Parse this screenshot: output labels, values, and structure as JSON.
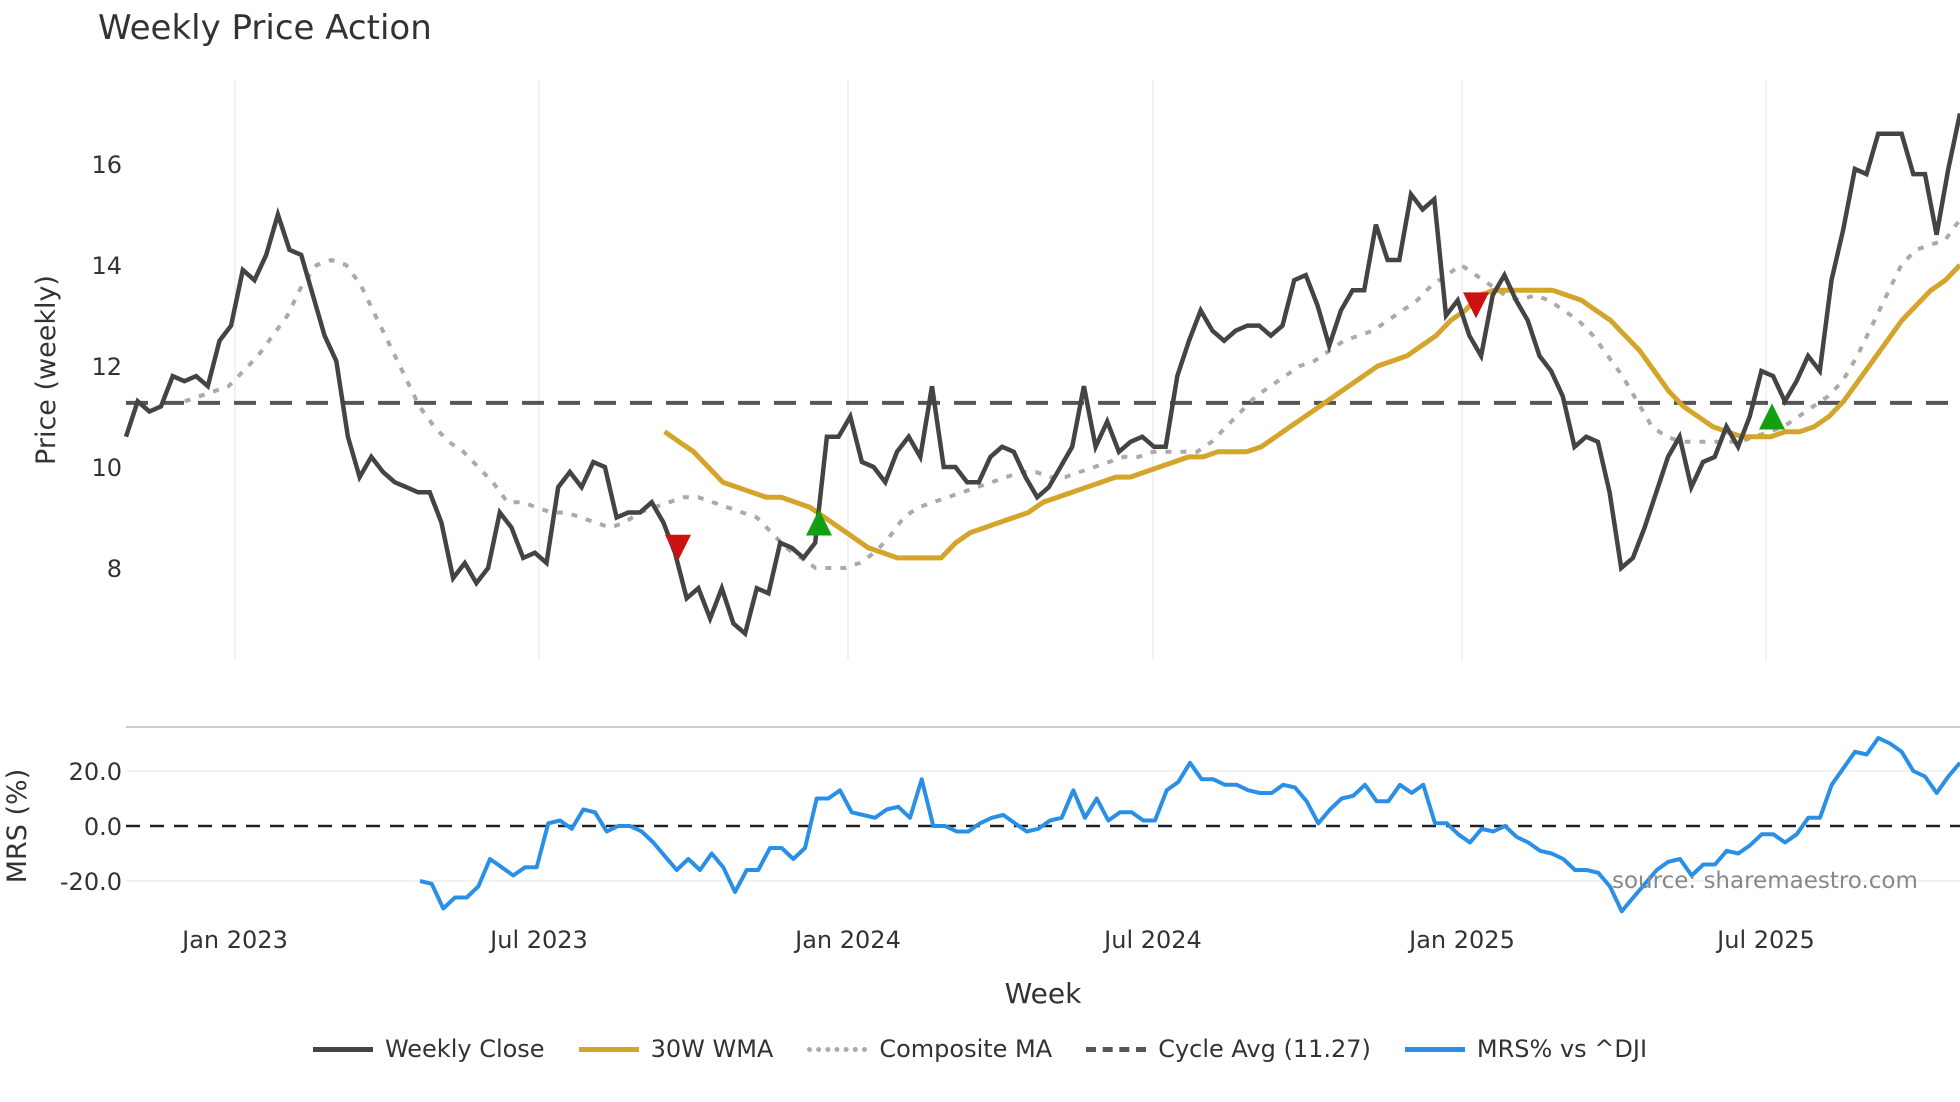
{
  "title": "Weekly Price Action",
  "source_note": "source: sharemaestro.com",
  "colors": {
    "weekly_close": "#444444",
    "wma30": "#D4A52A",
    "composite_ma": "#AAAAAA",
    "cycle_avg": "#555555",
    "mrs": "#2A8FE6",
    "buy_marker": "#12A012",
    "sell_marker": "#CC1111",
    "grid": "#ECEFF2"
  },
  "legend": {
    "items": [
      {
        "label": "Weekly Close",
        "style": "solid",
        "color": "#444444"
      },
      {
        "label": "30W WMA",
        "style": "solid",
        "color": "#D4A52A"
      },
      {
        "label": "Composite MA",
        "style": "dotted",
        "color": "#AAAAAA"
      },
      {
        "label": "Cycle Avg (11.27)",
        "style": "dashed",
        "color": "#555555"
      },
      {
        "label": "MRS% vs ^DJI",
        "style": "solid",
        "color": "#2A8FE6"
      }
    ]
  },
  "chart_data": [
    {
      "type": "line",
      "title": "Weekly Price Action",
      "xlabel": "Week",
      "ylabel": "Price (weekly)",
      "x_ticks": [
        "Jan 2023",
        "Jul 2023",
        "Jan 2024",
        "Jul 2024",
        "Jan 2025",
        "Jul 2025"
      ],
      "y_ticks": [
        8,
        10,
        12,
        14,
        16
      ],
      "ylim": [
        6.1,
        17.6
      ],
      "grid": "vertical",
      "legend_position": "bottom",
      "reference_lines": [
        {
          "label": "Cycle Avg",
          "value": 11.27,
          "style": "dashed"
        }
      ],
      "markers": [
        {
          "type": "sell",
          "shape": "triangle-down",
          "x_approx": "Oct 2023",
          "y": 8.4
        },
        {
          "type": "buy",
          "shape": "triangle-up",
          "x_approx": "Dec 2023",
          "y": 8.9
        },
        {
          "type": "sell",
          "shape": "triangle-down",
          "x_approx": "Jan 2025",
          "y": 13.2
        },
        {
          "type": "buy",
          "shape": "triangle-up",
          "x_approx": "Jul 2025",
          "y": 11.0
        }
      ],
      "series": [
        {
          "name": "Weekly Close",
          "values": [
            10.6,
            11.3,
            11.1,
            11.2,
            11.8,
            11.7,
            11.8,
            11.6,
            12.5,
            12.8,
            13.9,
            13.7,
            14.2,
            15.0,
            14.3,
            14.2,
            13.4,
            12.6,
            12.1,
            10.6,
            9.8,
            10.2,
            9.9,
            9.7,
            9.6,
            9.5,
            9.5,
            8.9,
            7.8,
            8.1,
            7.7,
            8.0,
            9.1,
            8.8,
            8.2,
            8.3,
            8.1,
            9.6,
            9.9,
            9.6,
            10.1,
            10.0,
            9.0,
            9.1,
            9.1,
            9.3,
            8.9,
            8.3,
            7.4,
            7.6,
            7.0,
            7.6,
            6.9,
            6.7,
            7.6,
            7.5,
            8.5,
            8.4,
            8.2,
            8.5,
            10.6,
            10.6,
            11.0,
            10.1,
            10.0,
            9.7,
            10.3,
            10.6,
            10.2,
            11.6,
            10.0,
            10.0,
            9.7,
            9.7,
            10.2,
            10.4,
            10.3,
            9.8,
            9.4,
            9.6,
            10.0,
            10.4,
            11.6,
            10.4,
            10.9,
            10.3,
            10.5,
            10.6,
            10.4,
            10.4,
            11.8,
            12.5,
            13.1,
            12.7,
            12.5,
            12.7,
            12.8,
            12.8,
            12.6,
            12.8,
            13.7,
            13.8,
            13.2,
            12.4,
            13.1,
            13.5,
            13.5,
            14.8,
            14.1,
            14.1,
            15.4,
            15.1,
            15.3,
            13.0,
            13.3,
            12.6,
            12.2,
            13.4,
            13.8,
            13.3,
            12.9,
            12.2,
            11.9,
            11.4,
            10.4,
            10.6,
            10.5,
            9.5,
            8.0,
            8.2,
            8.8,
            9.5,
            10.2,
            10.6,
            9.6,
            10.1,
            10.2,
            10.8,
            10.4,
            11.0,
            11.9,
            11.8,
            11.3,
            11.7,
            12.2,
            11.9,
            13.7,
            14.7,
            15.9,
            15.8,
            16.6,
            16.6,
            16.6,
            15.8,
            15.8,
            14.6,
            15.9,
            17.0
          ]
        },
        {
          "name": "30W WMA",
          "values": [
            null,
            null,
            null,
            null,
            null,
            null,
            null,
            null,
            null,
            null,
            null,
            null,
            null,
            null,
            null,
            null,
            null,
            null,
            null,
            null,
            null,
            null,
            null,
            null,
            null,
            null,
            null,
            null,
            null,
            null,
            null,
            null,
            null,
            null,
            null,
            null,
            null,
            10.7,
            10.5,
            10.3,
            10.0,
            9.7,
            9.6,
            9.5,
            9.4,
            9.4,
            9.3,
            9.2,
            9.0,
            8.8,
            8.6,
            8.4,
            8.3,
            8.2,
            8.2,
            8.2,
            8.2,
            8.5,
            8.7,
            8.8,
            8.9,
            9.0,
            9.1,
            9.3,
            9.4,
            9.5,
            9.6,
            9.7,
            9.8,
            9.8,
            9.9,
            10.0,
            10.1,
            10.2,
            10.2,
            10.3,
            10.3,
            10.3,
            10.4,
            10.6,
            10.8,
            11.0,
            11.2,
            11.4,
            11.6,
            11.8,
            12.0,
            12.1,
            12.2,
            12.4,
            12.6,
            12.9,
            13.1,
            13.4,
            13.5,
            13.5,
            13.5,
            13.5,
            13.5,
            13.4,
            13.3,
            13.1,
            12.9,
            12.6,
            12.3,
            11.9,
            11.5,
            11.2,
            11.0,
            10.8,
            10.7,
            10.6,
            10.6,
            10.6,
            10.7,
            10.7,
            10.8,
            11.0,
            11.3,
            11.7,
            12.1,
            12.5,
            12.9,
            13.2,
            13.5,
            13.7,
            14.0
          ]
        },
        {
          "name": "Composite MA",
          "values": [
            null,
            null,
            null,
            null,
            11.3,
            11.4,
            11.5,
            11.6,
            11.9,
            12.2,
            12.6,
            13.0,
            13.6,
            14.0,
            14.1,
            14.0,
            13.6,
            13.0,
            12.4,
            11.8,
            11.2,
            10.8,
            10.5,
            10.3,
            10.0,
            9.7,
            9.3,
            9.3,
            9.2,
            9.1,
            9.1,
            9.0,
            8.9,
            8.8,
            8.9,
            9.1,
            9.2,
            9.3,
            9.4,
            9.4,
            9.3,
            9.2,
            9.1,
            9.0,
            8.7,
            8.4,
            8.2,
            8.0,
            8.0,
            8.0,
            8.1,
            8.3,
            8.6,
            9.0,
            9.2,
            9.3,
            9.4,
            9.5,
            9.6,
            9.7,
            9.8,
            9.9,
            9.9,
            9.8,
            9.8,
            9.9,
            10.0,
            10.1,
            10.2,
            10.2,
            10.3,
            10.3,
            10.3,
            10.3,
            10.5,
            10.8,
            11.1,
            11.4,
            11.6,
            11.8,
            12.0,
            12.1,
            12.3,
            12.5,
            12.6,
            12.7,
            12.9,
            13.1,
            13.3,
            13.6,
            13.8,
            14.0,
            13.8,
            13.6,
            13.4,
            13.3,
            13.4,
            13.3,
            13.1,
            12.9,
            12.6,
            12.2,
            11.8,
            11.3,
            10.8,
            10.6,
            10.5,
            10.5,
            10.5,
            10.5,
            10.5,
            10.6,
            10.7,
            10.8,
            11.0,
            11.2,
            11.4,
            11.7,
            12.2,
            12.8,
            13.4,
            14.0,
            14.3,
            14.4,
            14.5,
            14.9
          ]
        },
        {
          "name": "Cycle Avg (11.27)",
          "values": "constant 11.27"
        }
      ]
    },
    {
      "type": "line",
      "xlabel": "Week",
      "ylabel": "MRS (%)",
      "x_ticks": [
        "Jan 2023",
        "Jul 2023",
        "Jan 2024",
        "Jul 2024",
        "Jan 2025",
        "Jul 2025"
      ],
      "y_ticks": [
        -20.0,
        0.0,
        20.0
      ],
      "ylim": [
        -33,
        36
      ],
      "reference_lines": [
        {
          "value": 0,
          "style": "dashed"
        }
      ],
      "series": [
        {
          "name": "MRS% vs ^DJI",
          "values": [
            -20,
            -21,
            -30,
            -26,
            -26,
            -22,
            -12,
            -15,
            -18,
            -15,
            -15,
            1,
            2,
            -1,
            6,
            5,
            -2,
            0,
            0,
            -2,
            -6,
            -11,
            -16,
            -12,
            -16,
            -10,
            -15,
            -24,
            -16,
            -16,
            -8,
            -8,
            -12,
            -8,
            10,
            10,
            13,
            5,
            4,
            3,
            6,
            7,
            3,
            17,
            0,
            0,
            -2,
            -2,
            1,
            3,
            4,
            1,
            -2,
            -1,
            2,
            3,
            13,
            3,
            10,
            2,
            5,
            5,
            2,
            2,
            13,
            16,
            23,
            17,
            17,
            15,
            15,
            13,
            12,
            12,
            15,
            14,
            9,
            1,
            6,
            10,
            11,
            15,
            9,
            9,
            15,
            12,
            15,
            1,
            1,
            -3,
            -6,
            -1,
            -2,
            0,
            -4,
            -6,
            -9,
            -10,
            -12,
            -16,
            -16,
            -17,
            -22,
            -31,
            -26,
            -21,
            -16,
            -13,
            -12,
            -18,
            -14,
            -14,
            -9,
            -10,
            -7,
            -3,
            -3,
            -6,
            -3,
            3,
            3,
            15,
            21,
            27,
            26,
            32,
            30,
            27,
            20,
            18,
            12,
            18,
            23
          ]
        }
      ]
    }
  ],
  "axes": {
    "price": {
      "ylabel": "Price (weekly)",
      "ticks": [
        "16",
        "14",
        "12",
        "10",
        "8"
      ]
    },
    "mrs": {
      "ylabel": "MRS (%)",
      "ticks": [
        "20.0",
        "0.0",
        "-20.0"
      ]
    },
    "x": {
      "label": "Week",
      "ticks": [
        "Jan 2023",
        "Jul 2023",
        "Jan 2024",
        "Jul 2024",
        "Jan 2025",
        "Jul 2025"
      ]
    }
  }
}
